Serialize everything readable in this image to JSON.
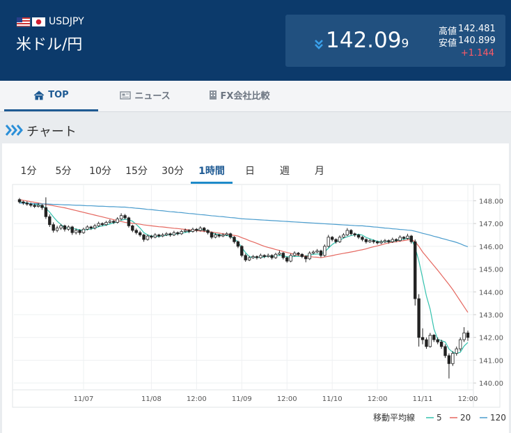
{
  "header": {
    "pair_code": "USDJPY",
    "pair_name": "米ドル/円",
    "price_main": "142.09",
    "price_last": "9",
    "high_label": "高値",
    "high": "142.481",
    "low_label": "安値",
    "low": "140.899",
    "change": "+1.144"
  },
  "nav": {
    "tabs": [
      "TOP",
      "ニュース",
      "FX会社比較"
    ]
  },
  "section_title": "チャート",
  "timeframes": {
    "tabs": [
      "1分",
      "5分",
      "10分",
      "15分",
      "30分",
      "1時間",
      "日",
      "週",
      "月"
    ],
    "active": "1時間"
  },
  "chart_data": {
    "type": "candlestick",
    "categories": [
      null,
      null,
      null,
      null,
      null,
      null,
      null,
      null,
      null,
      null,
      null,
      null,
      null,
      null,
      null,
      null,
      null,
      "11/07",
      null,
      null,
      null,
      null,
      null,
      null,
      null,
      null,
      null,
      null,
      null,
      null,
      null,
      null,
      null,
      null,
      null,
      "11/08",
      null,
      null,
      null,
      null,
      null,
      null,
      null,
      null,
      null,
      null,
      null,
      "12:00",
      null,
      null,
      null,
      null,
      null,
      null,
      null,
      null,
      null,
      null,
      null,
      "11/09",
      null,
      null,
      null,
      null,
      null,
      null,
      null,
      null,
      null,
      null,
      null,
      "12:00",
      null,
      null,
      null,
      null,
      null,
      null,
      null,
      null,
      null,
      null,
      null,
      "11/10",
      null,
      null,
      null,
      null,
      null,
      null,
      null,
      null,
      null,
      null,
      null,
      "12:00",
      null,
      null,
      null,
      null,
      null,
      null,
      null,
      null,
      null,
      null,
      null,
      "11/11",
      null,
      null,
      null,
      null,
      null,
      null,
      null,
      null,
      null,
      null,
      null,
      "12:00"
    ],
    "candles": [
      [
        148.05,
        148.12,
        147.88,
        147.95
      ],
      [
        147.95,
        148.0,
        147.82,
        147.9
      ],
      [
        147.9,
        147.98,
        147.78,
        147.85
      ],
      [
        147.85,
        147.92,
        147.72,
        147.8
      ],
      [
        147.8,
        147.88,
        147.68,
        147.75
      ],
      [
        147.75,
        147.9,
        147.7,
        147.8
      ],
      [
        147.8,
        147.85,
        147.6,
        147.7
      ],
      [
        147.7,
        148.15,
        147.2,
        147.3
      ],
      [
        147.3,
        147.4,
        146.85,
        146.95
      ],
      [
        146.95,
        147.05,
        146.6,
        146.7
      ],
      [
        146.7,
        146.9,
        146.62,
        146.8
      ],
      [
        146.8,
        146.98,
        146.72,
        146.9
      ],
      [
        146.9,
        146.95,
        146.65,
        146.75
      ],
      [
        146.75,
        146.92,
        146.68,
        146.85
      ],
      [
        146.85,
        146.9,
        146.5,
        146.6
      ],
      [
        146.6,
        146.78,
        146.52,
        146.7
      ],
      [
        146.7,
        146.75,
        146.5,
        146.6
      ],
      [
        146.6,
        146.82,
        146.55,
        146.75
      ],
      [
        146.75,
        146.92,
        146.7,
        146.85
      ],
      [
        146.85,
        146.9,
        146.72,
        146.8
      ],
      [
        146.8,
        146.98,
        146.74,
        146.9
      ],
      [
        146.9,
        147.08,
        146.85,
        147.0
      ],
      [
        147.0,
        147.05,
        146.88,
        146.95
      ],
      [
        146.95,
        147.12,
        146.9,
        147.05
      ],
      [
        147.05,
        147.18,
        147.0,
        147.1
      ],
      [
        147.1,
        147.15,
        146.98,
        147.05
      ],
      [
        147.05,
        147.28,
        147.0,
        147.2
      ],
      [
        147.2,
        147.45,
        147.15,
        147.35
      ],
      [
        147.35,
        147.42,
        147.18,
        147.25
      ],
      [
        147.25,
        147.3,
        146.82,
        146.9
      ],
      [
        146.9,
        146.95,
        146.62,
        146.7
      ],
      [
        146.7,
        146.78,
        146.52,
        146.6
      ],
      [
        146.6,
        146.68,
        146.42,
        146.5
      ],
      [
        146.5,
        146.55,
        146.2,
        146.3
      ],
      [
        146.3,
        146.52,
        146.25,
        146.45
      ],
      [
        146.45,
        146.5,
        146.32,
        146.4
      ],
      [
        146.4,
        146.58,
        146.35,
        146.5
      ],
      [
        146.5,
        146.55,
        146.38,
        146.45
      ],
      [
        146.45,
        146.58,
        146.4,
        146.5
      ],
      [
        146.5,
        146.62,
        146.45,
        146.55
      ],
      [
        146.55,
        146.6,
        146.42,
        146.5
      ],
      [
        146.5,
        146.68,
        146.45,
        146.6
      ],
      [
        146.6,
        146.65,
        146.48,
        146.55
      ],
      [
        146.55,
        146.72,
        146.5,
        146.65
      ],
      [
        146.65,
        146.78,
        146.6,
        146.7
      ],
      [
        146.7,
        146.75,
        146.58,
        146.65
      ],
      [
        146.65,
        146.82,
        146.6,
        146.75
      ],
      [
        146.75,
        146.8,
        146.62,
        146.7
      ],
      [
        146.7,
        146.88,
        146.65,
        146.8
      ],
      [
        146.8,
        146.85,
        146.62,
        146.7
      ],
      [
        146.7,
        146.75,
        146.52,
        146.6
      ],
      [
        146.6,
        146.65,
        146.32,
        146.4
      ],
      [
        146.4,
        146.58,
        146.35,
        146.5
      ],
      [
        146.5,
        146.55,
        146.38,
        146.45
      ],
      [
        146.45,
        146.58,
        146.4,
        146.5
      ],
      [
        146.5,
        146.62,
        146.45,
        146.55
      ],
      [
        146.55,
        146.6,
        146.32,
        146.4
      ],
      [
        146.4,
        146.45,
        146.12,
        146.2
      ],
      [
        146.2,
        146.25,
        145.92,
        146.0
      ],
      [
        146.0,
        146.05,
        145.52,
        145.6
      ],
      [
        145.6,
        145.68,
        145.32,
        145.4
      ],
      [
        145.4,
        145.58,
        145.35,
        145.5
      ],
      [
        145.5,
        145.62,
        145.45,
        145.55
      ],
      [
        145.55,
        145.6,
        145.42,
        145.5
      ],
      [
        145.5,
        145.68,
        145.45,
        145.6
      ],
      [
        145.6,
        145.65,
        145.48,
        145.55
      ],
      [
        145.55,
        145.68,
        145.5,
        145.6
      ],
      [
        145.6,
        145.65,
        145.42,
        145.5
      ],
      [
        145.5,
        145.72,
        145.45,
        145.65
      ],
      [
        145.65,
        145.82,
        145.6,
        145.7
      ],
      [
        145.7,
        145.75,
        145.42,
        145.5
      ],
      [
        145.5,
        145.55,
        145.28,
        145.35
      ],
      [
        145.35,
        145.68,
        145.3,
        145.6
      ],
      [
        145.6,
        145.78,
        145.55,
        145.7
      ],
      [
        145.7,
        145.75,
        145.58,
        145.65
      ],
      [
        145.65,
        145.7,
        145.48,
        145.55
      ],
      [
        145.55,
        145.6,
        145.3,
        145.45
      ],
      [
        145.45,
        145.78,
        145.4,
        145.7
      ],
      [
        145.7,
        145.82,
        145.65,
        145.75
      ],
      [
        145.75,
        145.88,
        145.7,
        145.8
      ],
      [
        145.8,
        145.85,
        145.52,
        145.6
      ],
      [
        145.6,
        146.08,
        145.55,
        146.0
      ],
      [
        146.0,
        146.5,
        145.95,
        146.4
      ],
      [
        146.4,
        146.45,
        146.22,
        146.3
      ],
      [
        146.3,
        146.35,
        146.12,
        146.2
      ],
      [
        146.2,
        146.48,
        146.15,
        146.4
      ],
      [
        146.4,
        146.58,
        146.35,
        146.5
      ],
      [
        146.5,
        146.8,
        146.45,
        146.7
      ],
      [
        146.7,
        146.75,
        146.48,
        146.55
      ],
      [
        146.55,
        146.6,
        146.42,
        146.5
      ],
      [
        146.5,
        146.55,
        146.32,
        146.4
      ],
      [
        146.4,
        146.45,
        146.22,
        146.3
      ],
      [
        146.3,
        146.35,
        146.12,
        146.2
      ],
      [
        146.2,
        146.32,
        146.15,
        146.25
      ],
      [
        146.25,
        146.3,
        146.12,
        146.2
      ],
      [
        146.2,
        146.25,
        146.08,
        146.15
      ],
      [
        146.15,
        146.28,
        146.1,
        146.2
      ],
      [
        146.2,
        146.32,
        146.15,
        146.25
      ],
      [
        146.25,
        146.3,
        146.12,
        146.2
      ],
      [
        146.2,
        146.38,
        146.15,
        146.3
      ],
      [
        146.3,
        146.35,
        146.18,
        146.25
      ],
      [
        146.25,
        146.48,
        146.2,
        146.4
      ],
      [
        146.4,
        146.45,
        146.28,
        146.35
      ],
      [
        146.35,
        146.55,
        146.3,
        146.45
      ],
      [
        146.45,
        146.5,
        146.12,
        146.2
      ],
      [
        146.2,
        146.3,
        143.4,
        143.7
      ],
      [
        143.7,
        143.9,
        141.6,
        142.0
      ],
      [
        142.0,
        142.4,
        141.7,
        141.9
      ],
      [
        141.9,
        142.0,
        141.5,
        141.6
      ],
      [
        141.6,
        142.2,
        141.55,
        142.1
      ],
      [
        142.1,
        142.15,
        141.8,
        141.9
      ],
      [
        141.9,
        142.0,
        141.7,
        141.8
      ],
      [
        141.8,
        141.9,
        141.5,
        141.6
      ],
      [
        141.6,
        141.7,
        141.1,
        141.2
      ],
      [
        141.2,
        141.3,
        140.2,
        140.85
      ],
      [
        140.85,
        141.4,
        140.75,
        141.3
      ],
      [
        141.3,
        141.6,
        141.2,
        141.5
      ],
      [
        141.5,
        142.0,
        141.4,
        141.9
      ],
      [
        141.9,
        142.45,
        141.8,
        142.2
      ],
      [
        142.2,
        142.3,
        141.85,
        142.0
      ]
    ],
    "up_color": "#ffffff",
    "down_color": "#222222",
    "legend_title": "移動平均線",
    "series": [
      {
        "name": "5",
        "color": "#33c2ae",
        "values": [
          147.95,
          147.93,
          147.9,
          147.87,
          147.85,
          147.82,
          147.78,
          147.67,
          147.5,
          147.29,
          147.1,
          146.96,
          146.82,
          146.8,
          146.78,
          146.76,
          146.72,
          146.7,
          146.74,
          146.76,
          146.8,
          146.86,
          146.9,
          146.93,
          146.98,
          147.03,
          147.07,
          147.14,
          147.19,
          147.17,
          147.1,
          146.96,
          146.8,
          146.6,
          146.5,
          146.45,
          146.44,
          146.43,
          146.46,
          146.49,
          146.51,
          146.53,
          146.55,
          146.57,
          146.61,
          146.64,
          146.68,
          146.7,
          146.72,
          146.72,
          146.66,
          146.6,
          146.54,
          146.52,
          146.48,
          146.48,
          146.43,
          146.33,
          146.19,
          145.95,
          145.72,
          145.55,
          145.51,
          145.51,
          145.51,
          145.54,
          145.56,
          145.55,
          145.58,
          145.6,
          145.59,
          145.54,
          145.54,
          145.56,
          145.56,
          145.57,
          145.59,
          145.61,
          145.65,
          145.66,
          145.66,
          145.75,
          145.92,
          146.08,
          146.19,
          146.26,
          146.36,
          146.42,
          146.47,
          146.5,
          146.53,
          146.49,
          146.39,
          146.33,
          146.27,
          146.22,
          146.2,
          146.2,
          146.2,
          146.22,
          146.24,
          146.29,
          146.31,
          146.35,
          146.33,
          145.95,
          145.36,
          144.6,
          143.82,
          143.24,
          142.38,
          141.92,
          141.86,
          141.8,
          141.49,
          141.35,
          141.29,
          141.35,
          141.62,
          141.78
        ]
      },
      {
        "name": "20",
        "color": "#e5675f",
        "values": [
          148.05,
          148.02,
          147.99,
          147.96,
          147.93,
          147.9,
          147.87,
          147.84,
          147.81,
          147.78,
          147.75,
          147.72,
          147.69,
          147.65,
          147.61,
          147.57,
          147.53,
          147.49,
          147.45,
          147.41,
          147.37,
          147.33,
          147.29,
          147.25,
          147.21,
          147.17,
          147.13,
          147.09,
          147.05,
          147.03,
          147.01,
          146.99,
          146.97,
          146.94,
          146.92,
          146.9,
          146.88,
          146.86,
          146.85,
          146.83,
          146.81,
          146.79,
          146.78,
          146.76,
          146.74,
          146.72,
          146.71,
          146.69,
          146.67,
          146.66,
          146.65,
          146.63,
          146.6,
          146.58,
          146.55,
          146.53,
          146.5,
          146.48,
          146.45,
          146.38,
          146.32,
          146.25,
          146.19,
          146.13,
          146.06,
          146.0,
          145.95,
          145.91,
          145.86,
          145.82,
          145.77,
          145.73,
          145.69,
          145.64,
          145.6,
          145.58,
          145.57,
          145.55,
          145.53,
          145.52,
          145.5,
          145.53,
          145.56,
          145.59,
          145.63,
          145.66,
          145.69,
          145.72,
          145.75,
          145.78,
          145.82,
          145.85,
          145.89,
          145.94,
          145.98,
          146.02,
          146.06,
          146.11,
          146.15,
          146.18,
          146.2,
          146.23,
          146.25,
          146.28,
          146.3,
          146.2,
          146.0,
          145.75,
          145.55,
          145.35,
          145.15,
          144.95,
          144.74,
          144.53,
          144.32,
          144.1,
          143.85,
          143.6,
          143.35,
          143.1
        ]
      },
      {
        "name": "120",
        "color": "#4a9ccd",
        "values": [
          147.9,
          147.89,
          147.89,
          147.88,
          147.87,
          147.87,
          147.86,
          147.86,
          147.85,
          147.84,
          147.84,
          147.83,
          147.82,
          147.82,
          147.81,
          147.8,
          147.8,
          147.79,
          147.78,
          147.78,
          147.77,
          147.76,
          147.76,
          147.75,
          147.74,
          147.74,
          147.73,
          147.72,
          147.72,
          147.7,
          147.69,
          147.67,
          147.66,
          147.64,
          147.62,
          147.61,
          147.59,
          147.57,
          147.56,
          147.54,
          147.52,
          147.51,
          147.49,
          147.48,
          147.46,
          147.44,
          147.43,
          147.41,
          147.39,
          147.38,
          147.36,
          147.34,
          147.33,
          147.31,
          147.3,
          147.28,
          147.26,
          147.25,
          147.23,
          147.21,
          147.2,
          147.19,
          147.18,
          147.17,
          147.16,
          147.15,
          147.14,
          147.13,
          147.12,
          147.11,
          147.1,
          147.09,
          147.08,
          147.07,
          147.06,
          147.05,
          147.04,
          147.03,
          147.02,
          147.01,
          147.0,
          146.99,
          146.98,
          146.97,
          146.96,
          146.95,
          146.94,
          146.93,
          146.92,
          146.91,
          146.9,
          146.9,
          146.88,
          146.87,
          146.85,
          146.84,
          146.82,
          146.8,
          146.79,
          146.77,
          146.76,
          146.74,
          146.73,
          146.71,
          146.7,
          146.66,
          146.62,
          146.57,
          146.53,
          146.49,
          146.44,
          146.4,
          146.35,
          146.31,
          146.26,
          146.22,
          146.17,
          146.11,
          146.04,
          145.98
        ]
      }
    ],
    "ylim": [
      139.7,
      148.5
    ],
    "yticks": [
      {
        "value": 148,
        "label": "148.00"
      },
      {
        "value": 147,
        "label": "147.00"
      },
      {
        "value": 146,
        "label": "146.00"
      },
      {
        "value": 145,
        "label": "145.00"
      },
      {
        "value": 144,
        "label": "144.00"
      },
      {
        "value": 143,
        "label": "143.00"
      },
      {
        "value": 142,
        "label": "142.00"
      },
      {
        "value": 141,
        "label": "141.00"
      },
      {
        "value": 140,
        "label": "140.00"
      }
    ],
    "grid": true
  }
}
